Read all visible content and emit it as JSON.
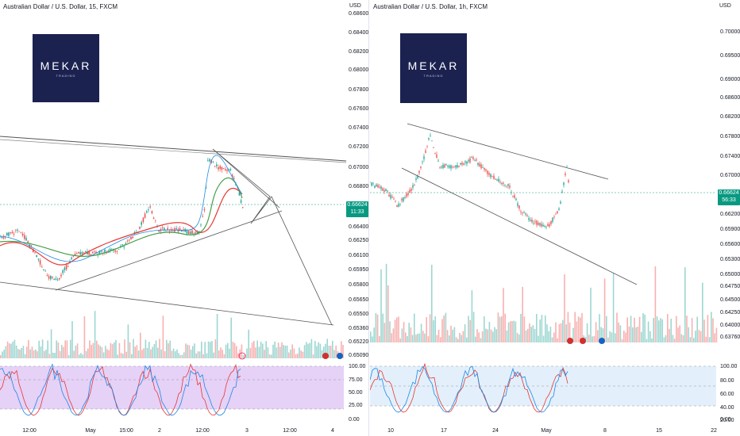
{
  "left": {
    "title": "Australian Dollar / U.S. Dollar, 15, FXCM",
    "currency": "USD",
    "logo": {
      "word": "MEKAR",
      "sub": "TRADING"
    },
    "price_ticks": [
      "0.68600",
      "0.68400",
      "0.68200",
      "0.68000",
      "0.67800",
      "0.67600",
      "0.67400",
      "0.67200",
      "0.67000",
      "0.66800",
      "0.66400",
      "0.66250",
      "0.66100",
      "0.65950",
      "0.65800",
      "0.65650",
      "0.65500",
      "0.65360",
      "0.65220",
      "0.65090"
    ],
    "current_price": "0.66624",
    "countdown": "11:33",
    "osc_ticks": [
      "100.00",
      "75.00",
      "50.00",
      "25.00",
      "0.00"
    ],
    "time_labels": [
      "12:00",
      "May",
      "15:00",
      "2",
      "12:00",
      "3",
      "12:00",
      "4"
    ]
  },
  "right": {
    "title": "Australian Dollar / U.S. Dollar, 1h, FXCM",
    "currency": "USD",
    "logo": {
      "word": "MEKAR",
      "sub": "TRADING"
    },
    "price_ticks": [
      "0.70000",
      "0.69500",
      "0.69000",
      "0.68600",
      "0.68200",
      "0.67800",
      "0.67400",
      "0.67000",
      "0.66600",
      "0.66200",
      "0.65900",
      "0.65600",
      "0.65300",
      "0.65000",
      "0.64750",
      "0.64500",
      "0.64250",
      "0.64000",
      "0.63760"
    ],
    "current_price": "0.66624",
    "countdown": "56:33",
    "osc_ticks": [
      "100.00",
      "80.00",
      "60.00",
      "40.00",
      "20.00",
      "0.00"
    ],
    "time_labels": [
      "10",
      "17",
      "24",
      "May",
      "8",
      "15",
      "22"
    ]
  },
  "colors": {
    "up": "#26a69a",
    "down": "#ef5350",
    "ma_red": "#e53935",
    "ma_green": "#43a047",
    "ma_blue": "#1e88e5",
    "osc_left_bg": "#e6d1f7",
    "osc_right_bg": "#e3f0fb",
    "badge": "#089981",
    "logo_bg": "#1b2250"
  }
}
